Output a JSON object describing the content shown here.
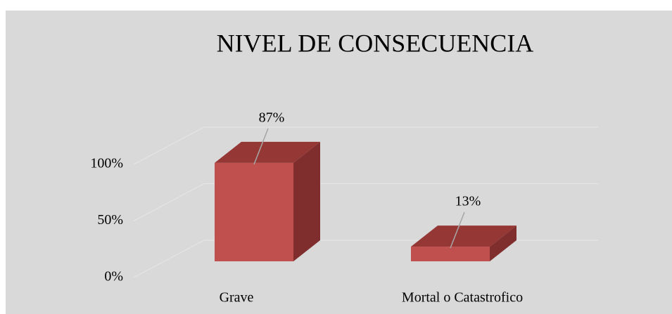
{
  "chart_data": {
    "type": "bar3d",
    "title": "NIVEL DE CONSECUENCIA",
    "categories": [
      "Grave",
      "Mortal o Catastrofico"
    ],
    "values": [
      87,
      13
    ],
    "value_labels": [
      "87%",
      "13%"
    ],
    "color": "#c0504d",
    "ylim": [
      0,
      100
    ],
    "yticks": [
      {
        "value": 0,
        "label": "0%"
      },
      {
        "value": 50,
        "label": "50%"
      },
      {
        "value": 100,
        "label": "100%"
      }
    ],
    "grid": true
  }
}
